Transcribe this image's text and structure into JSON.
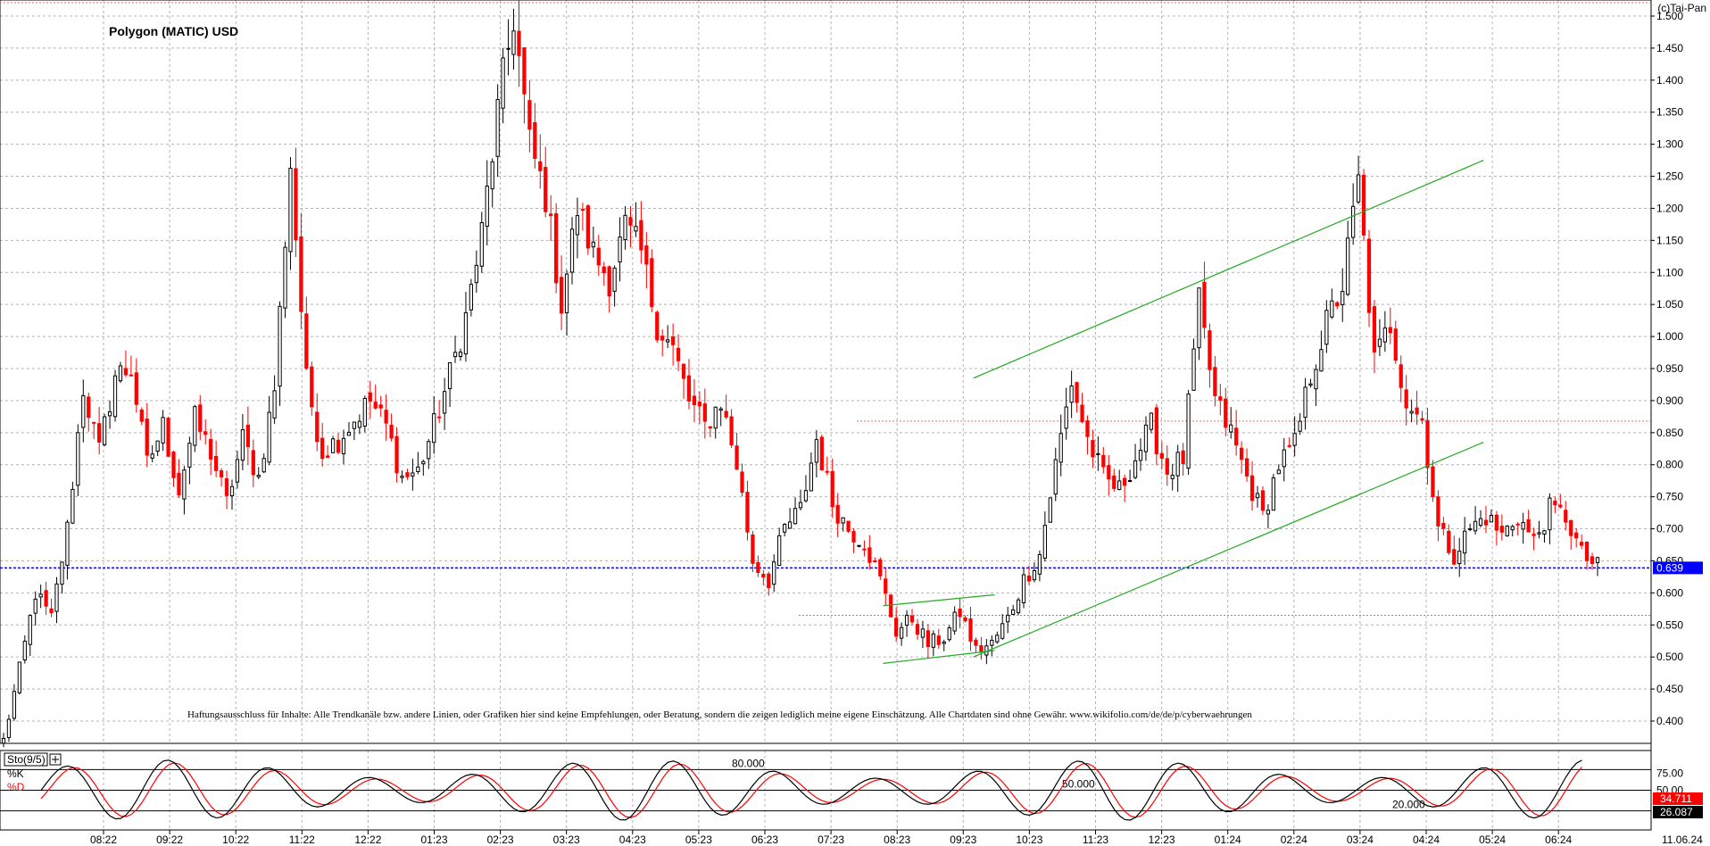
{
  "copyright": "(c)Tai-Pan",
  "chart_data": {
    "type": "candlestick",
    "title": "Polygon (MATIC) USD",
    "ylim": [
      0.34,
      1.52
    ],
    "y_ticks": [
      "0.400",
      "0.450",
      "0.500",
      "0.550",
      "0.600",
      "0.650",
      "0.700",
      "0.750",
      "0.800",
      "0.850",
      "0.900",
      "0.950",
      "1.000",
      "1.050",
      "1.100",
      "1.150",
      "1.200",
      "1.250",
      "1.300",
      "1.350",
      "1.400",
      "1.450",
      "1.500"
    ],
    "x_ticks": [
      "08:22",
      "09:22",
      "10:22",
      "11:22",
      "12:22",
      "01:23",
      "02:23",
      "03:23",
      "04:23",
      "05:23",
      "06:23",
      "07:23",
      "08:23",
      "09:23",
      "10:23",
      "11:23",
      "12:23",
      "01:24",
      "02:24",
      "03:24",
      "04:24",
      "05:24",
      "06:24"
    ],
    "x_end_label": "11.06.24",
    "last_price": "0.639",
    "price_path": [
      [
        0,
        0.37
      ],
      [
        3,
        0.48
      ],
      [
        6,
        0.6
      ],
      [
        9,
        0.56
      ],
      [
        12,
        0.7
      ],
      [
        15,
        0.92
      ],
      [
        18,
        0.82
      ],
      [
        21,
        0.94
      ],
      [
        24,
        0.95
      ],
      [
        27,
        0.8
      ],
      [
        30,
        0.86
      ],
      [
        33,
        0.76
      ],
      [
        36,
        0.87
      ],
      [
        39,
        0.82
      ],
      [
        42,
        0.74
      ],
      [
        45,
        0.84
      ],
      [
        48,
        0.78
      ],
      [
        51,
        0.92
      ],
      [
        54,
        1.27
      ],
      [
        57,
        0.93
      ],
      [
        60,
        0.82
      ],
      [
        63,
        0.84
      ],
      [
        66,
        0.87
      ],
      [
        69,
        0.9
      ],
      [
        72,
        0.86
      ],
      [
        75,
        0.78
      ],
      [
        78,
        0.79
      ],
      [
        81,
        0.86
      ],
      [
        84,
        0.94
      ],
      [
        87,
        1.03
      ],
      [
        90,
        1.16
      ],
      [
        93,
        1.35
      ],
      [
        96,
        1.5
      ],
      [
        99,
        1.3
      ],
      [
        102,
        1.22
      ],
      [
        105,
        1.05
      ],
      [
        108,
        1.2
      ],
      [
        111,
        1.13
      ],
      [
        114,
        1.09
      ],
      [
        117,
        1.17
      ],
      [
        120,
        1.13
      ],
      [
        123,
        1.02
      ],
      [
        126,
        0.98
      ],
      [
        129,
        0.9
      ],
      [
        132,
        0.86
      ],
      [
        135,
        0.9
      ],
      [
        138,
        0.8
      ],
      [
        141,
        0.65
      ],
      [
        144,
        0.62
      ],
      [
        147,
        0.7
      ],
      [
        150,
        0.73
      ],
      [
        153,
        0.84
      ],
      [
        156,
        0.74
      ],
      [
        159,
        0.7
      ],
      [
        162,
        0.68
      ],
      [
        165,
        0.62
      ],
      [
        168,
        0.54
      ],
      [
        171,
        0.56
      ],
      [
        174,
        0.52
      ],
      [
        177,
        0.53
      ],
      [
        180,
        0.57
      ],
      [
        183,
        0.51
      ],
      [
        186,
        0.52
      ],
      [
        189,
        0.56
      ],
      [
        192,
        0.62
      ],
      [
        195,
        0.66
      ],
      [
        198,
        0.8
      ],
      [
        201,
        0.93
      ],
      [
        204,
        0.84
      ],
      [
        207,
        0.78
      ],
      [
        210,
        0.76
      ],
      [
        213,
        0.81
      ],
      [
        216,
        0.86
      ],
      [
        219,
        0.79
      ],
      [
        222,
        0.81
      ],
      [
        225,
        1.05
      ],
      [
        228,
        0.9
      ],
      [
        231,
        0.85
      ],
      [
        234,
        0.78
      ],
      [
        237,
        0.72
      ],
      [
        240,
        0.8
      ],
      [
        243,
        0.83
      ],
      [
        246,
        0.94
      ],
      [
        249,
        1.02
      ],
      [
        252,
        1.08
      ],
      [
        255,
        1.24
      ],
      [
        258,
        0.96
      ],
      [
        261,
        1.02
      ],
      [
        264,
        0.9
      ],
      [
        267,
        0.87
      ],
      [
        270,
        0.7
      ],
      [
        273,
        0.66
      ],
      [
        276,
        0.7
      ],
      [
        279,
        0.72
      ],
      [
        282,
        0.69
      ],
      [
        285,
        0.72
      ],
      [
        288,
        0.68
      ],
      [
        291,
        0.73
      ],
      [
        294,
        0.72
      ],
      [
        297,
        0.66
      ],
      [
        300,
        0.64
      ]
    ],
    "lines": [
      {
        "name": "upper-trend",
        "p1": [
          180,
          0.935
        ],
        "p2": [
          276,
          1.275
        ]
      },
      {
        "name": "lower-trend",
        "p1": [
          180,
          0.5
        ],
        "p2": [
          276,
          0.835
        ]
      },
      {
        "name": "triangle-top",
        "p1": [
          163,
          0.58
        ],
        "p2": [
          184,
          0.597
        ]
      },
      {
        "name": "triangle-bottom",
        "p1": [
          163,
          0.49
        ],
        "p2": [
          184,
          0.51
        ]
      }
    ],
    "h_levels": [
      {
        "value": 0.639,
        "style": "blue-dotted"
      },
      {
        "value": 0.565,
        "style": "green-dotted"
      },
      {
        "value": 0.868,
        "style": "red-dotted"
      },
      {
        "value": 1.52,
        "style": "red-dotted"
      }
    ],
    "disclaimer": "Haftungsausschluss für Inhalte: Alle Trendkanäle bzw. andere Linien, oder Grafiken hier sind keine Empfehlungen, oder Beratung, sondern die zeigen lediglich meine eigene Einschätzung. Alle Chartdaten sind ohne Gewähr.  www.wikifolio.com/de/de/p/cyberwaehrungen",
    "indicator": {
      "name": "Sto(9/5)",
      "k_label": "%K",
      "d_label": "%D",
      "ylim": [
        0,
        100
      ],
      "levels": [
        "80.000",
        "50.000",
        "20.000"
      ],
      "y_ticks": [
        "75.00",
        "50.00"
      ],
      "k_value": "34.711",
      "d_value": "26.087"
    }
  }
}
